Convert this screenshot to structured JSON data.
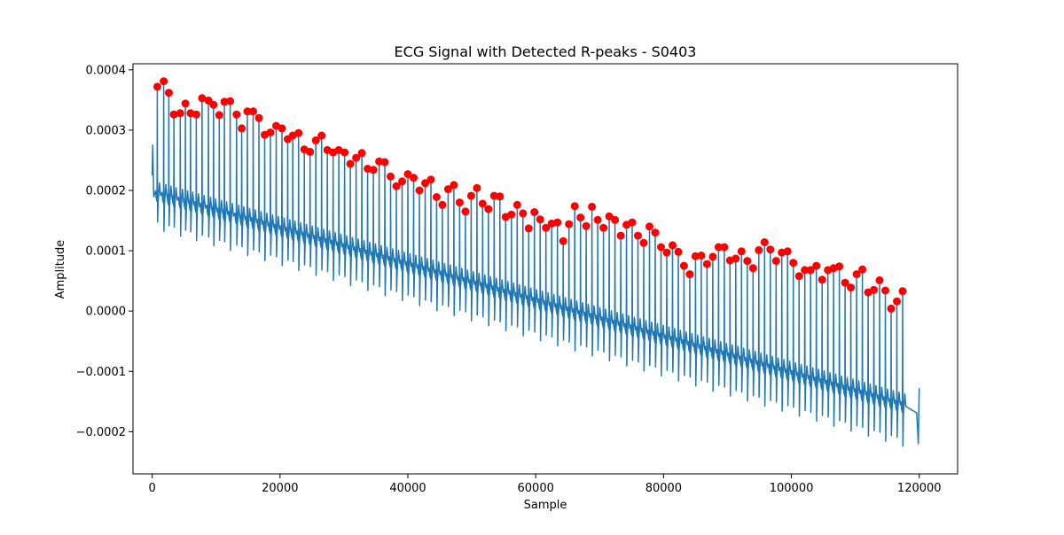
{
  "chart_data": {
    "type": "line",
    "title": "ECG Signal with Detected R-peaks - S0403",
    "xlabel": "Sample",
    "ylabel": "Amplitude",
    "xlim": [
      -3000,
      126000
    ],
    "ylim": [
      -0.00027,
      0.00041
    ],
    "x_ticks": [
      0,
      20000,
      40000,
      60000,
      80000,
      100000,
      120000
    ],
    "x_tick_labels": [
      "0",
      "20000",
      "40000",
      "60000",
      "80000",
      "100000",
      "120000"
    ],
    "y_ticks": [
      -0.0002,
      -0.0001,
      0.0,
      0.0001,
      0.0002,
      0.0003,
      0.0004
    ],
    "y_tick_labels": [
      "−0.0002",
      "−0.0001",
      "0.0000",
      "0.0001",
      "0.0002",
      "0.0003",
      "0.0004"
    ],
    "grid": false,
    "series": [
      {
        "color": "#1f77b4",
        "marker": "line",
        "signal": {
          "x_start": 0,
          "x_end": 120000,
          "baseline_start": 0.00019,
          "baseline_end": -0.00017,
          "s_wave_start": 0.00015,
          "s_wave_end": -0.00022
        }
      },
      {
        "color": "#ff0000",
        "marker": "circle",
        "x": [
          800,
          1800,
          2600,
          3400,
          4400,
          5200,
          6000,
          6900,
          7800,
          8800,
          9600,
          10500,
          11300,
          12200,
          13200,
          14000,
          14900,
          15800,
          16700,
          17600,
          18500,
          19400,
          20300,
          21200,
          22000,
          22900,
          23800,
          24700,
          25600,
          26500,
          27400,
          28300,
          29200,
          30100,
          31000,
          31900,
          32800,
          33700,
          34600,
          35500,
          36400,
          37300,
          38200,
          39100,
          40000,
          40900,
          41800,
          42700,
          43600,
          44500,
          45400,
          46300,
          47200,
          48100,
          49000,
          49900,
          50800,
          51700,
          52600,
          53500,
          54400,
          55300,
          56200,
          57100,
          58000,
          58900,
          59800,
          60700,
          61600,
          62500,
          63400,
          64300,
          65200,
          66100,
          67000,
          67900,
          68800,
          69700,
          70600,
          71500,
          72400,
          73300,
          74200,
          75100,
          76000,
          76900,
          77800,
          78700,
          79600,
          80500,
          81400,
          82300,
          83200,
          84100,
          85000,
          85900,
          86800,
          87700,
          88600,
          89500,
          90400,
          91300,
          92200,
          93100,
          94000,
          94900,
          95800,
          96700,
          97600,
          98500,
          99400,
          100300,
          101200,
          102100,
          103000,
          103900,
          104800,
          105700,
          106600,
          107500,
          108400,
          109300,
          110200,
          111100,
          112000,
          112900,
          113800,
          114700,
          115600,
          116500,
          117400
        ],
        "y": [
          0.000372,
          0.000381,
          0.000362,
          0.000326,
          0.000328,
          0.000344,
          0.000328,
          0.000326,
          0.000353,
          0.000349,
          0.000342,
          0.000325,
          0.000347,
          0.000348,
          0.000326,
          0.000303,
          0.000331,
          0.000331,
          0.00032,
          0.000292,
          0.000296,
          0.000307,
          0.000303,
          0.000285,
          0.000291,
          0.000295,
          0.000268,
          0.000264,
          0.000283,
          0.000291,
          0.000267,
          0.000263,
          0.000267,
          0.000263,
          0.000244,
          0.000254,
          0.000262,
          0.000236,
          0.000234,
          0.000248,
          0.000247,
          0.000223,
          0.000207,
          0.000215,
          0.000227,
          0.000221,
          0.0002,
          0.000212,
          0.000218,
          0.000189,
          0.000176,
          0.000202,
          0.000209,
          0.00018,
          0.000165,
          0.000191,
          0.000204,
          0.000178,
          0.000169,
          0.000191,
          0.00019,
          0.000156,
          0.00016,
          0.000176,
          0.000162,
          0.000137,
          0.000164,
          0.000152,
          0.000138,
          0.000145,
          0.000147,
          0.000116,
          0.000144,
          0.000174,
          0.000155,
          0.000141,
          0.000173,
          0.000151,
          0.000138,
          0.000157,
          0.000151,
          0.000125,
          0.000143,
          0.000147,
          0.000125,
          0.000113,
          0.00014,
          0.00013,
          0.000106,
          9.7e-05,
          0.000109,
          9.8e-05,
          7.5e-05,
          6.1e-05,
          9.1e-05,
          9.2e-05,
          7.8e-05,
          9e-05,
          0.000106,
          0.000106,
          8.4e-05,
          8.7e-05,
          9.9e-05,
          8.3e-05,
          7.1e-05,
          0.000101,
          0.000114,
          0.000102,
          8.3e-05,
          9.7e-05,
          9.9e-05,
          8e-05,
          5.8e-05,
          6.8e-05,
          6.8e-05,
          7.5e-05,
          5.2e-05,
          6.8e-05,
          7.1e-05,
          7.4e-05,
          4.7e-05,
          3.9e-05,
          6.1e-05,
          6.9e-05,
          3.1e-05,
          3.5e-05,
          5.1e-05,
          3.4e-05,
          4e-06,
          1.6e-05,
          3.3e-05
        ]
      }
    ]
  }
}
